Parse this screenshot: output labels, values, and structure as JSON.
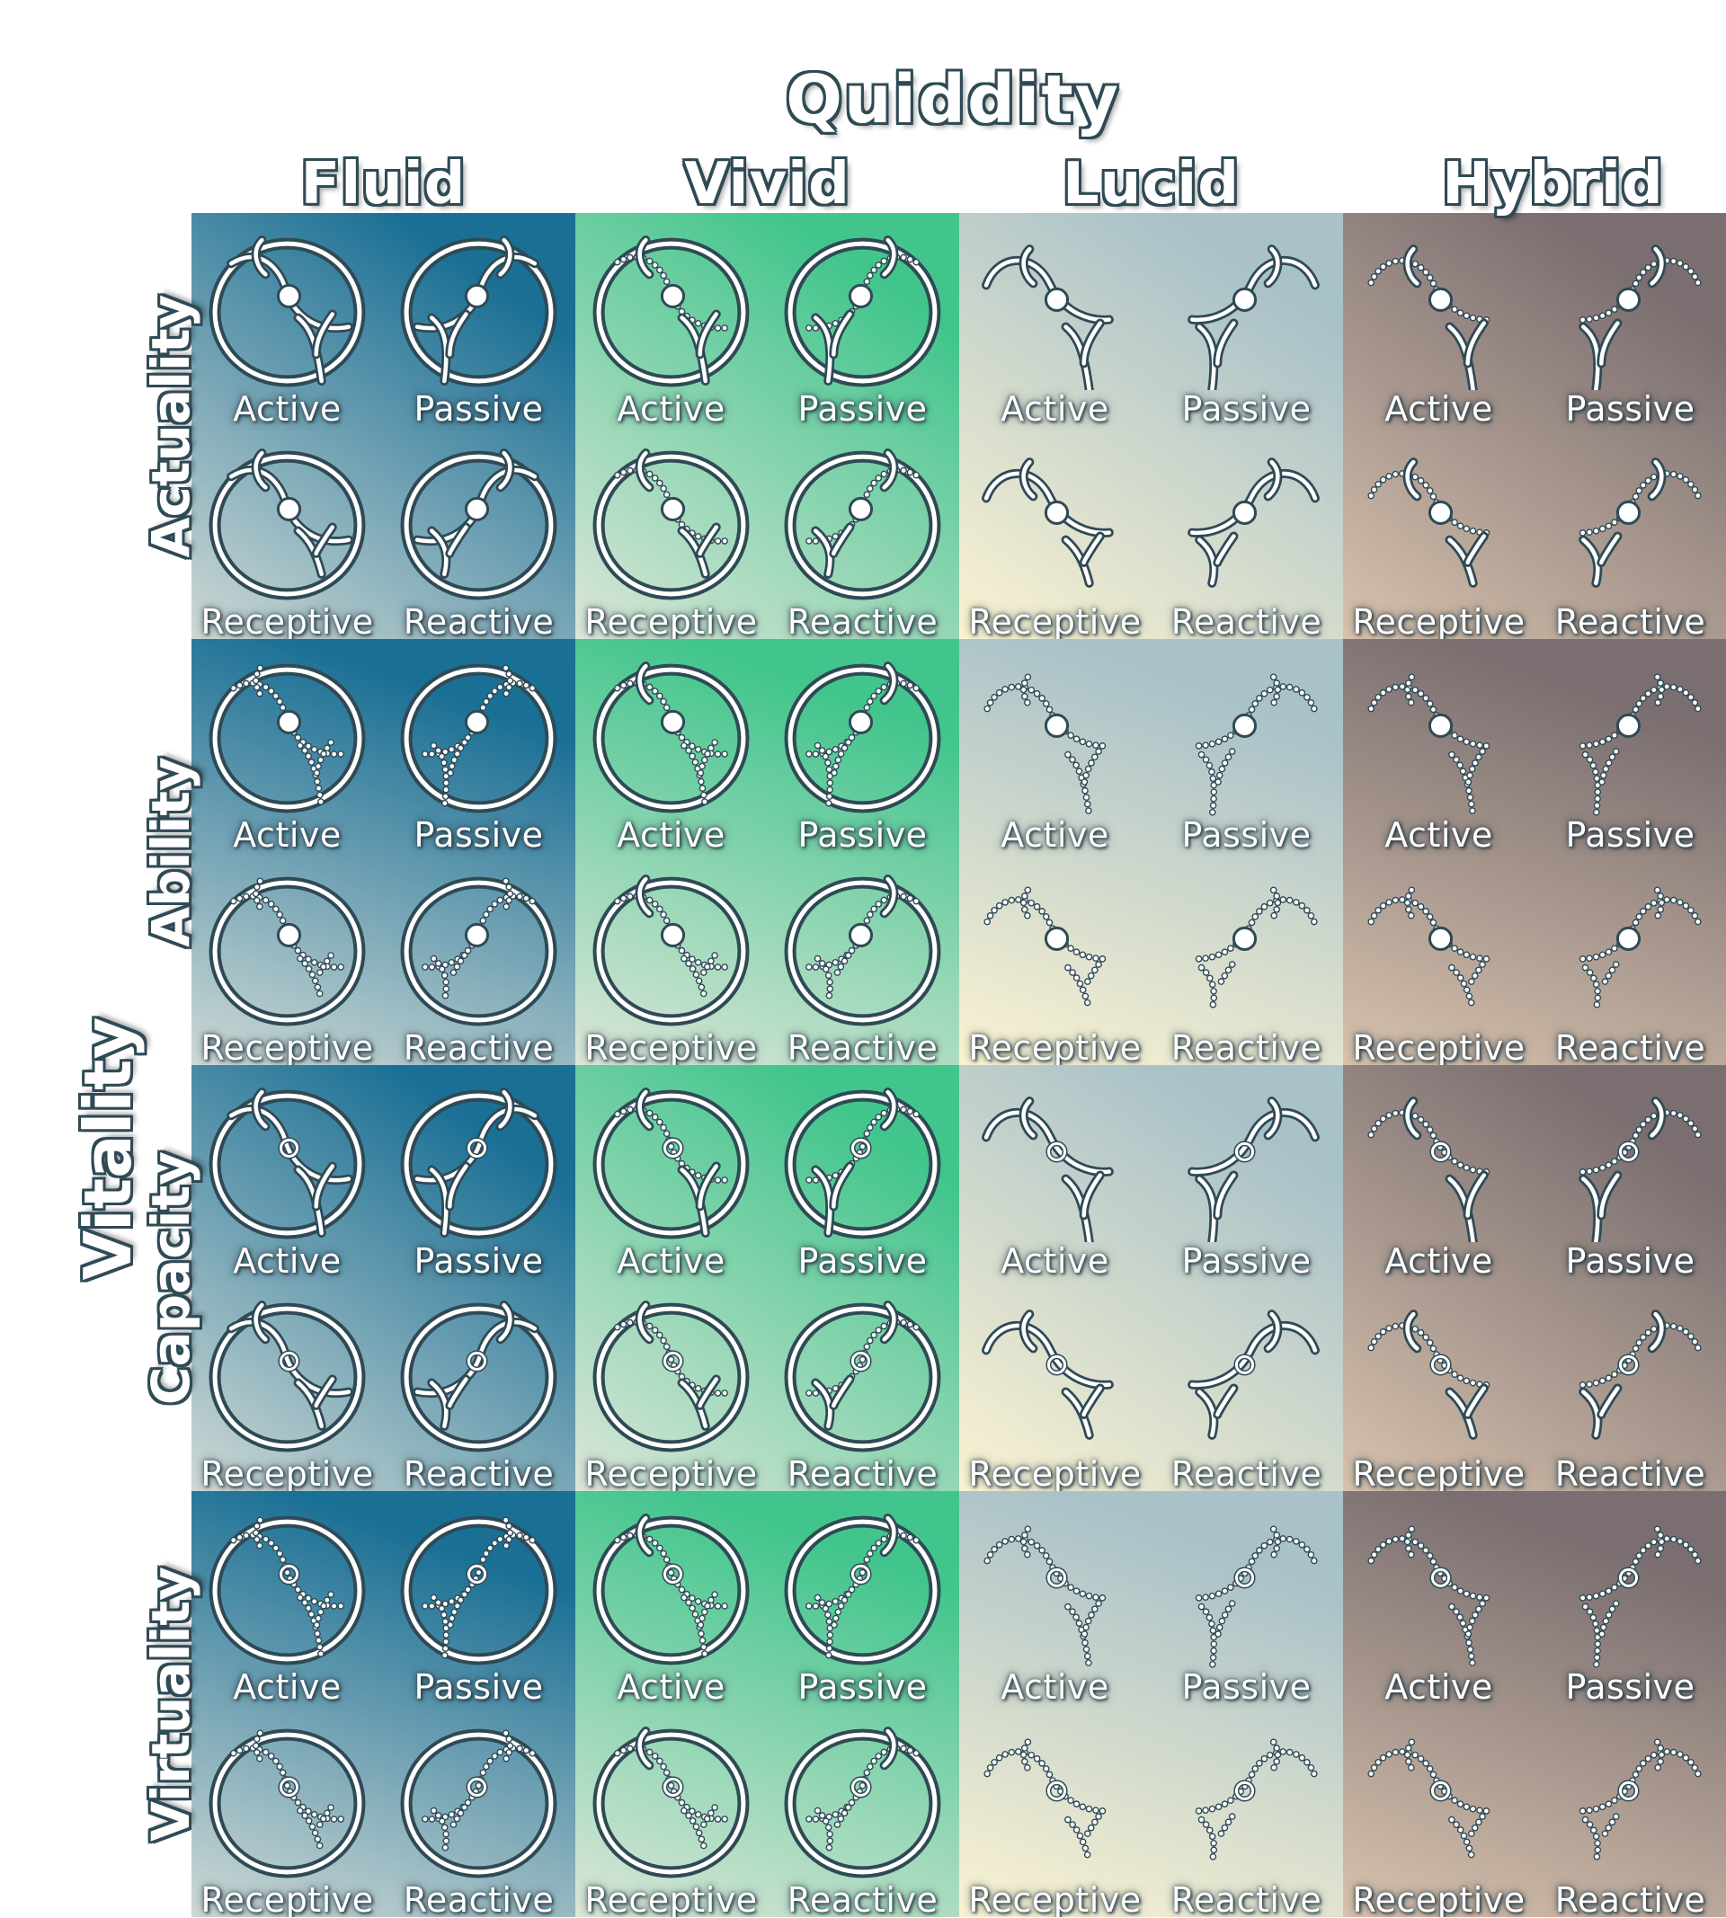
{
  "title": "Quiddity",
  "side_title": "Vitality",
  "columns": [
    {
      "label": "Fluid",
      "style": "ring",
      "colors": [
        "#1a6f95",
        "#cfd9d5"
      ]
    },
    {
      "label": "Vivid",
      "style": "ring",
      "colors": [
        "#42c58d",
        "#dde6d9"
      ]
    },
    {
      "label": "Lucid",
      "style": "open",
      "colors": [
        "#a9c1c8",
        "#fbf3d2"
      ]
    },
    {
      "label": "Hybrid",
      "style": "open",
      "colors": [
        "#7a6e70",
        "#d7c2ad"
      ]
    }
  ],
  "rows": [
    {
      "label": "Actuality",
      "dot": "filled"
    },
    {
      "label": "Ability",
      "dot": "filled"
    },
    {
      "label": "Capacity",
      "dot": "hollow"
    },
    {
      "label": "Virtuality",
      "dot": "hollow"
    }
  ],
  "modes": [
    "Active",
    "Passive",
    "Receptive",
    "Reactive"
  ],
  "colors": {
    "outline": "#2f4a55",
    "stroke": "#ffffff",
    "bead": "#6f97a3"
  }
}
